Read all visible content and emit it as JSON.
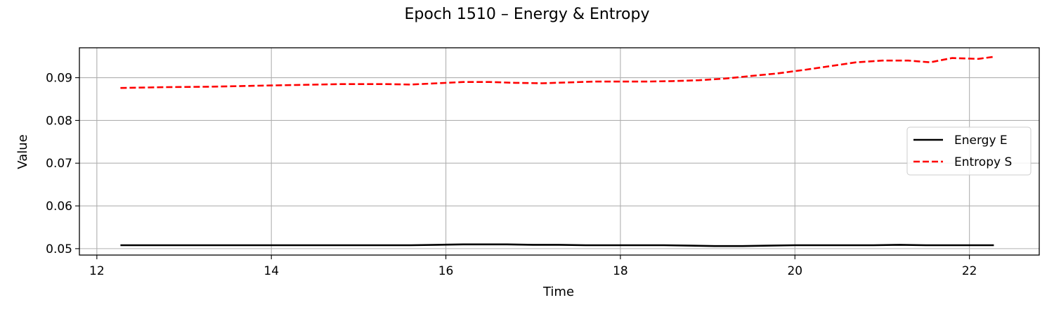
{
  "chart_data": {
    "type": "line",
    "title": "Epoch 1510 – Energy & Entropy",
    "xlabel": "Time",
    "ylabel": "Value",
    "xlim": [
      11.8,
      22.8
    ],
    "ylim": [
      0.0485,
      0.097
    ],
    "xticks": [
      12,
      14,
      16,
      18,
      20,
      22
    ],
    "yticks": [
      0.05,
      0.06,
      0.07,
      0.08,
      0.09
    ],
    "xtick_labels": [
      "12",
      "14",
      "16",
      "18",
      "20",
      "22"
    ],
    "ytick_labels": [
      "0.05",
      "0.06",
      "0.07",
      "0.08",
      "0.09"
    ],
    "grid": true,
    "legend_position": "center-right",
    "series": [
      {
        "name": "Energy E",
        "color": "#000000",
        "style": "solid",
        "x": [
          12.27,
          12.8,
          13.3,
          13.8,
          14.3,
          14.8,
          15.3,
          15.6,
          15.9,
          16.2,
          16.4,
          16.7,
          17.0,
          17.3,
          17.6,
          17.9,
          18.2,
          18.5,
          18.8,
          19.1,
          19.4,
          19.7,
          20.0,
          20.3,
          20.6,
          20.9,
          21.2,
          21.5,
          21.8,
          22.1,
          22.28
        ],
        "y": [
          0.0508,
          0.0508,
          0.0508,
          0.0508,
          0.0508,
          0.0508,
          0.0508,
          0.0508,
          0.0509,
          0.051,
          0.051,
          0.051,
          0.0509,
          0.0509,
          0.0508,
          0.0508,
          0.0508,
          0.0508,
          0.0507,
          0.0506,
          0.0506,
          0.0507,
          0.0508,
          0.0508,
          0.0508,
          0.0508,
          0.0509,
          0.0508,
          0.0508,
          0.0508,
          0.0508
        ]
      },
      {
        "name": "Entropy S",
        "color": "#ff0000",
        "style": "dashed",
        "x": [
          12.27,
          12.8,
          13.3,
          13.8,
          14.3,
          14.8,
          15.3,
          15.6,
          15.9,
          16.2,
          16.5,
          16.8,
          17.1,
          17.4,
          17.7,
          18.0,
          18.3,
          18.6,
          18.9,
          19.2,
          19.5,
          19.8,
          20.1,
          20.4,
          20.7,
          21.0,
          21.3,
          21.55,
          21.8,
          22.1,
          22.28
        ],
        "y": [
          0.0876,
          0.0878,
          0.0879,
          0.0881,
          0.0883,
          0.0885,
          0.0885,
          0.0884,
          0.0887,
          0.089,
          0.089,
          0.0888,
          0.0887,
          0.0889,
          0.0891,
          0.0891,
          0.0891,
          0.0892,
          0.0894,
          0.0898,
          0.0904,
          0.091,
          0.0918,
          0.0927,
          0.0936,
          0.094,
          0.094,
          0.0936,
          0.0946,
          0.0944,
          0.0949
        ]
      }
    ]
  }
}
